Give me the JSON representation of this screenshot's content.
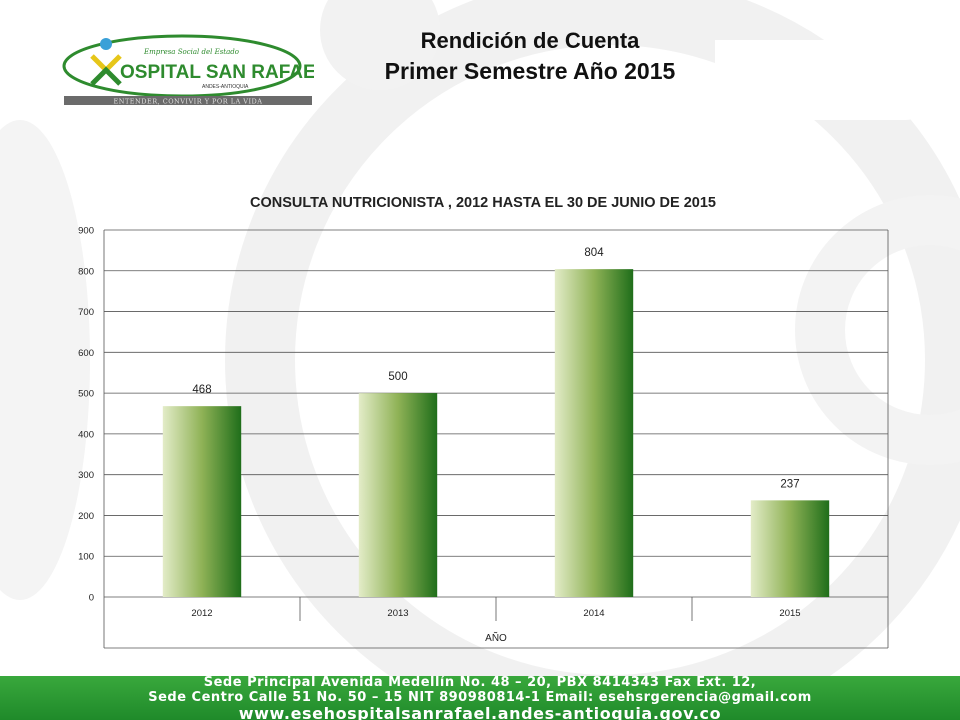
{
  "slide": {
    "title_line1": "Rendición de Cuenta",
    "title_line2": "Primer Semestre  Año  2015"
  },
  "logo": {
    "small_text": "Empresa Social del Estado",
    "name": "HOSPITAL SAN RAFAEL",
    "location": "ANDES-ANTIOQUIA",
    "tagline": "ENTENDER, CONVIVIR Y POR LA VIDA",
    "colors": {
      "green": "#2e8b2e",
      "yellow": "#e6c619",
      "blue": "#3aa0d8",
      "grey": "#6b6b6b"
    }
  },
  "chart_data": {
    "type": "bar",
    "title": "CONSULTA NUTRICIONISTA , 2012 HASTA EL 30 DE JUNIO DE 2015",
    "categories": [
      "2012",
      "2013",
      "2014",
      "2015"
    ],
    "values": [
      468,
      500,
      804,
      237
    ],
    "data_labels": [
      "468",
      "500",
      "804",
      "237"
    ],
    "xlabel": "AÑO",
    "ylabel": "",
    "ylim": [
      0,
      900
    ],
    "yticks": [
      0,
      100,
      200,
      300,
      400,
      500,
      600,
      700,
      800,
      900
    ],
    "grid": true,
    "legend": "none",
    "bar_gradient": [
      "#e3ecc8",
      "#8fb256",
      "#1f6e1a"
    ]
  },
  "footer": {
    "line1": "Sede Principal Avenida Medellín No. 48 – 20, PBX 8414343 Fax Ext. 12,",
    "line2": "Sede Centro Calle 51 No. 50 – 15 NIT 890980814-1 Email: esehsrgerencia@gmail.com",
    "line3": "www.esehospitalsanrafael.andes-antioquia.gov.co",
    "color": "#2a9a33"
  }
}
